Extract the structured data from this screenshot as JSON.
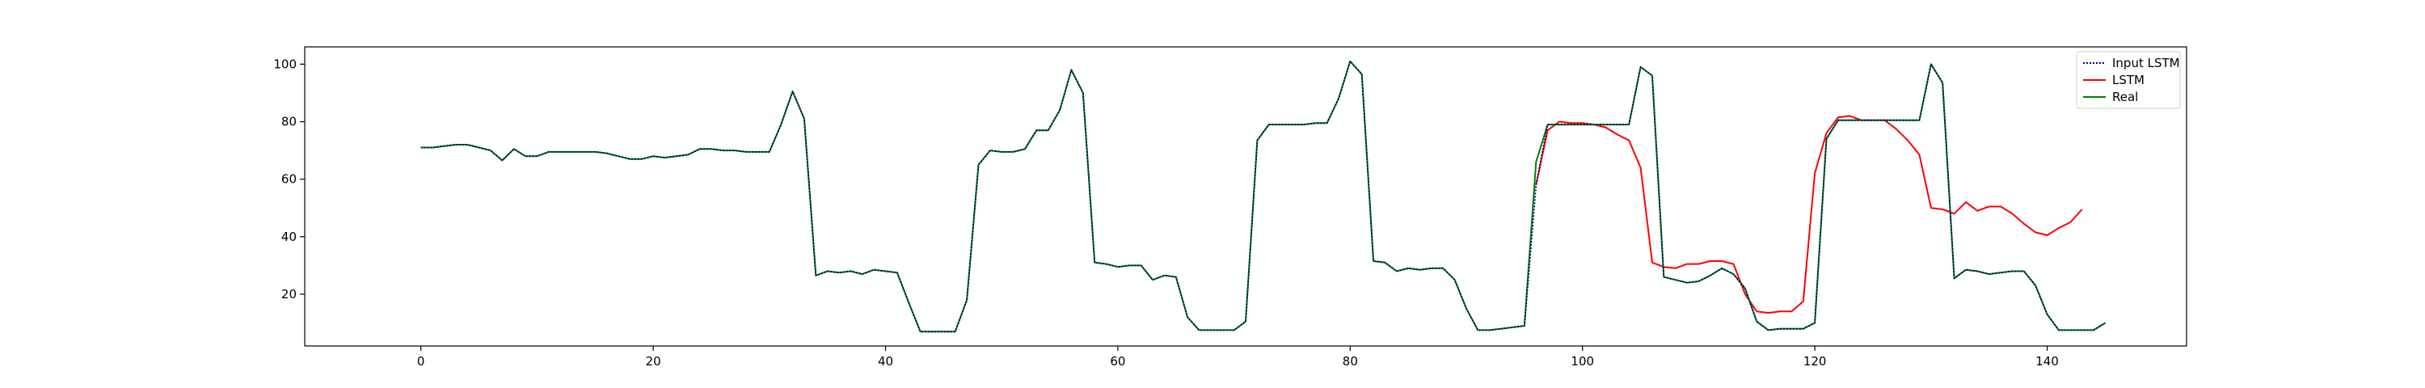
{
  "chart_data": {
    "type": "line",
    "title": "",
    "xlabel": "",
    "ylabel": "",
    "xlim": [
      -10,
      152
    ],
    "ylim": [
      2,
      106
    ],
    "x_ticks": [
      0,
      20,
      40,
      60,
      80,
      100,
      120,
      140
    ],
    "y_ticks": [
      20,
      40,
      60,
      80,
      100
    ],
    "grid": false,
    "legend_position": "top-right",
    "series": [
      {
        "name": "Input LSTM",
        "color": "#00008b",
        "style": "dotted",
        "x_start": 0,
        "values": [
          71,
          71,
          71.5,
          72,
          72,
          71,
          70,
          66.5,
          70.5,
          68,
          68,
          69.5,
          69.5,
          69.5,
          69.5,
          69.5,
          69,
          68,
          67,
          67,
          68,
          67.5,
          68,
          68.5,
          70.5,
          70.5,
          70,
          70,
          69.5,
          69.5,
          69.5,
          79,
          90.5,
          81,
          26.5,
          28,
          27.5,
          28,
          27,
          28.5,
          28,
          27.5,
          17,
          7,
          7,
          7,
          7,
          18,
          65,
          70,
          69.5,
          69.5,
          70.5,
          77,
          77,
          84,
          98,
          90,
          31,
          30.5,
          29.5,
          30,
          30,
          25,
          26.5,
          26,
          12,
          7.5,
          7.5,
          7.5,
          7.5,
          10.5,
          73.5,
          79,
          79,
          79,
          79,
          79.5,
          79.5,
          88,
          101,
          96.5,
          31.5,
          31,
          28,
          29,
          28.5,
          29,
          29,
          25,
          15,
          7.5,
          7.5,
          8,
          8.5,
          9,
          58,
          79,
          79,
          79,
          79,
          79,
          79,
          79,
          79,
          99,
          96,
          26,
          25,
          24,
          24.5,
          26.5,
          29,
          27,
          22,
          10.5,
          7.5,
          8,
          8,
          8,
          10,
          74,
          80.5,
          80.5,
          80.5,
          80.5,
          80.5,
          80.5,
          80.5,
          80.5,
          100,
          93.5,
          25.5,
          28.5,
          28,
          27,
          27.5,
          28,
          28,
          23,
          13,
          7.5,
          7.5,
          7.5,
          7.5,
          10
        ]
      },
      {
        "name": "LSTM",
        "color": "#ff0000",
        "style": "solid",
        "x_start": 96,
        "values": [
          58,
          77,
          80,
          79.5,
          79.5,
          79,
          78,
          75.5,
          73.5,
          64,
          31,
          29.5,
          29,
          30.5,
          30.5,
          31.5,
          31.5,
          30.5,
          20,
          14,
          13.5,
          14,
          14,
          17.5,
          62,
          76,
          81.5,
          82,
          80.5,
          80.5,
          80.5,
          77.5,
          73.5,
          68.5,
          50,
          49.5,
          48,
          52,
          49,
          50.5,
          50.5,
          48,
          44.5,
          41.5,
          40.5,
          43,
          45,
          49.5
        ]
      },
      {
        "name": "Real",
        "color": "#008000",
        "style": "solid",
        "x_start": 0,
        "values": [
          71,
          71,
          71.5,
          72,
          72,
          71,
          70,
          66.5,
          70.5,
          68,
          68,
          69.5,
          69.5,
          69.5,
          69.5,
          69.5,
          69,
          68,
          67,
          67,
          68,
          67.5,
          68,
          68.5,
          70.5,
          70.5,
          70,
          70,
          69.5,
          69.5,
          69.5,
          79,
          90.5,
          81,
          26.5,
          28,
          27.5,
          28,
          27,
          28.5,
          28,
          27.5,
          17,
          7,
          7,
          7,
          7,
          18,
          65,
          70,
          69.5,
          69.5,
          70.5,
          77,
          77,
          84,
          98,
          90,
          31,
          30.5,
          29.5,
          30,
          30,
          25,
          26.5,
          26,
          12,
          7.5,
          7.5,
          7.5,
          7.5,
          10.5,
          73.5,
          79,
          79,
          79,
          79,
          79.5,
          79.5,
          88,
          101,
          96.5,
          31.5,
          31,
          28,
          29,
          28.5,
          29,
          29,
          25,
          15,
          7.5,
          7.5,
          8,
          8.5,
          9,
          66,
          79,
          79,
          79,
          79,
          79,
          79,
          79,
          79,
          99,
          96,
          26,
          25,
          24,
          24.5,
          26.5,
          29,
          27,
          22,
          10.5,
          7.5,
          8,
          8,
          8,
          10,
          74,
          80.5,
          80.5,
          80.5,
          80.5,
          80.5,
          80.5,
          80.5,
          80.5,
          100,
          93.5,
          25.5,
          28.5,
          28,
          27,
          27.5,
          28,
          28,
          23,
          13,
          7.5,
          7.5,
          7.5,
          7.5,
          10
        ]
      }
    ]
  }
}
